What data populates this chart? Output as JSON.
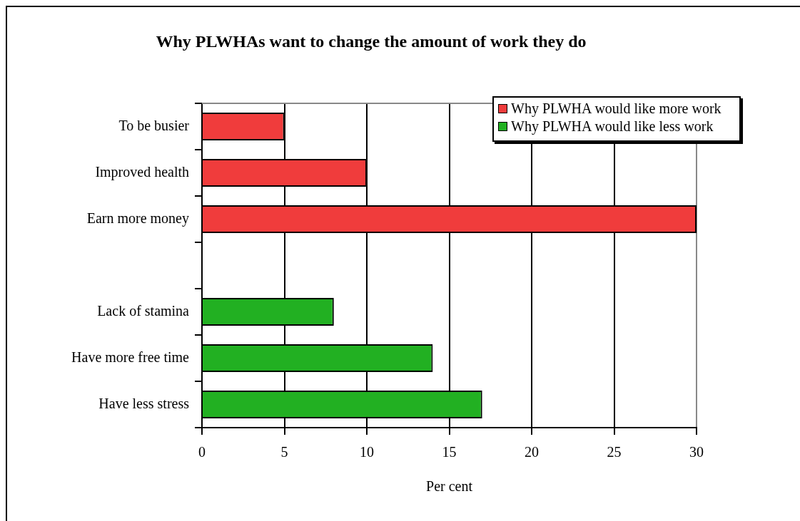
{
  "chart_data": {
    "type": "bar",
    "orientation": "horizontal",
    "title": "Why PLWHAs want to change the amount of work they do",
    "xlabel": "Per cent",
    "categories": [
      "To be busier",
      "Improved health",
      "Earn more money",
      null,
      "Lack of stamina",
      "Have more free time",
      "Have less stress"
    ],
    "series": [
      {
        "name": "Why PLWHA would like more work",
        "color": "#f03c3c",
        "values": [
          5,
          10,
          30,
          null,
          null,
          null,
          null
        ]
      },
      {
        "name": "Why PLWHA would like less work",
        "color": "#22b022",
        "values": [
          null,
          null,
          null,
          null,
          8,
          14,
          17
        ]
      }
    ],
    "xlim": [
      0,
      30
    ],
    "xticks": [
      0,
      5,
      10,
      15,
      20,
      25,
      30
    ],
    "grid": "x",
    "legend": "top right"
  }
}
